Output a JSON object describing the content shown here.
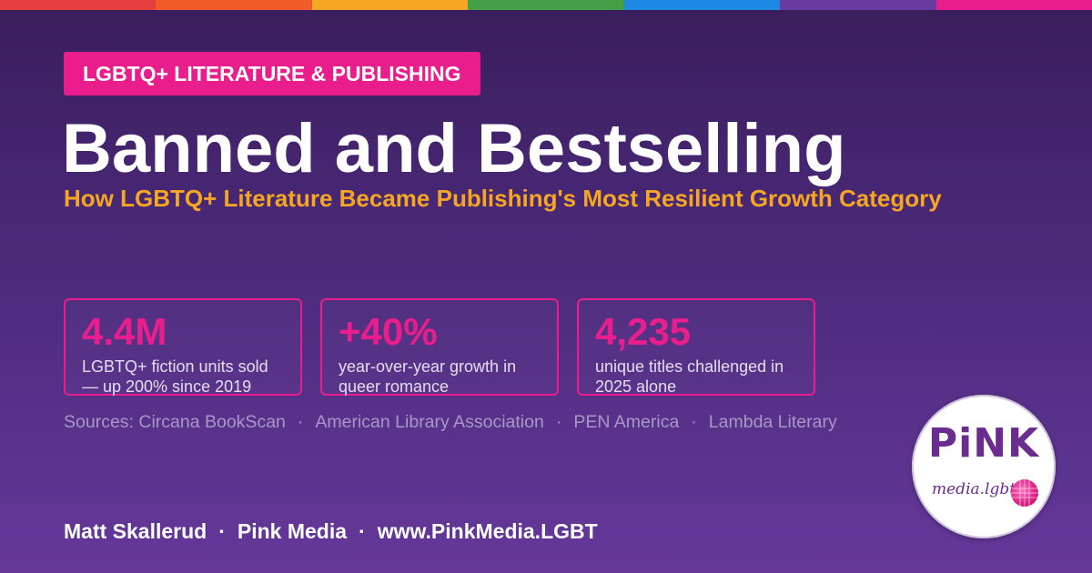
{
  "rainbow_colors": [
    "#e53f3f",
    "#f15a29",
    "#f5a623",
    "#43a047",
    "#1e88e5",
    "#6a3ba0",
    "#e91e8c"
  ],
  "kicker": "LGBTQ+ LITERATURE & PUBLISHING",
  "title": "Banned and Bestselling",
  "subtitle": "How LGBTQ+ Literature Became Publishing's Most Resilient Growth Category",
  "stats": [
    {
      "value": "4.4M",
      "label": "LGBTQ+ fiction units sold — up 200% since 2019"
    },
    {
      "value": "+40%",
      "label": "year-over-year growth in queer romance"
    },
    {
      "value": "4,235",
      "label": "unique titles challenged in 2025 alone"
    }
  ],
  "sources": {
    "prefix": "Sources:",
    "items": [
      "Circana BookScan",
      "American Library Association",
      "PEN America",
      "Lambda Literary"
    ]
  },
  "footer": {
    "author": "Matt Skallerud",
    "brand": "Pink Media",
    "url": "www.PinkMedia.LGBT"
  },
  "logo": {
    "main": "PiNK",
    "sub": "media.lgbt",
    "icon": "pink-globe-icon"
  },
  "colors": {
    "accent_pink": "#e91e8c",
    "accent_orange": "#f5a623",
    "background_top": "#3a1d5c",
    "background_bottom": "#65389a"
  }
}
